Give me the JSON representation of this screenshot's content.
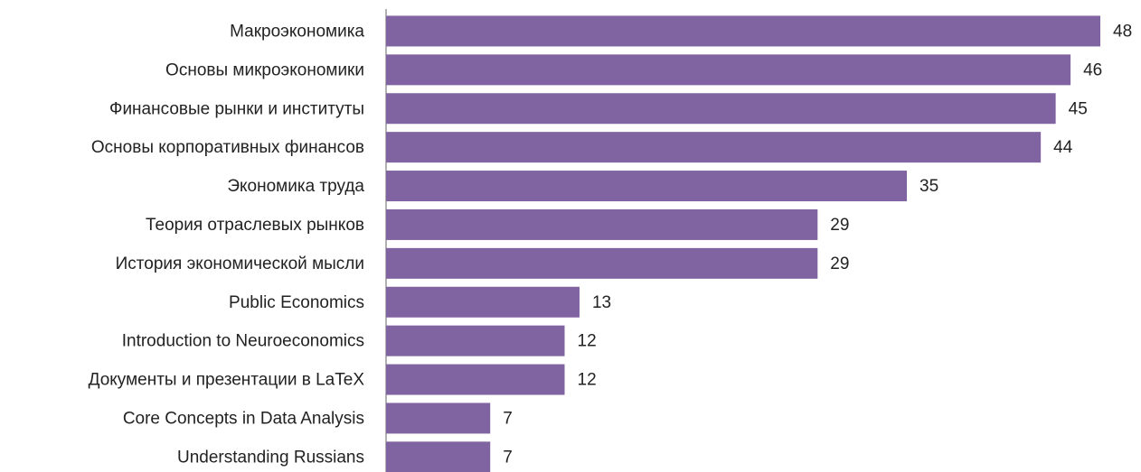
{
  "chart_data": {
    "type": "barh",
    "categories": [
      "Макроэкономика",
      "Основы микроэкономики",
      "Финансовые рынки и институты",
      "Основы корпоративных финансов",
      "Экономика труда",
      "Теория отраслевых рынков",
      "История экономической мысли",
      "Public Economics",
      "Introduction to Neuroeconomics",
      "Документы и презентации в LaTeX",
      "Core Concepts in Data Analysis",
      "Understanding Russians"
    ],
    "values": [
      48,
      46,
      45,
      44,
      35,
      29,
      29,
      13,
      12,
      12,
      7,
      7
    ],
    "color": "#8064a2"
  }
}
